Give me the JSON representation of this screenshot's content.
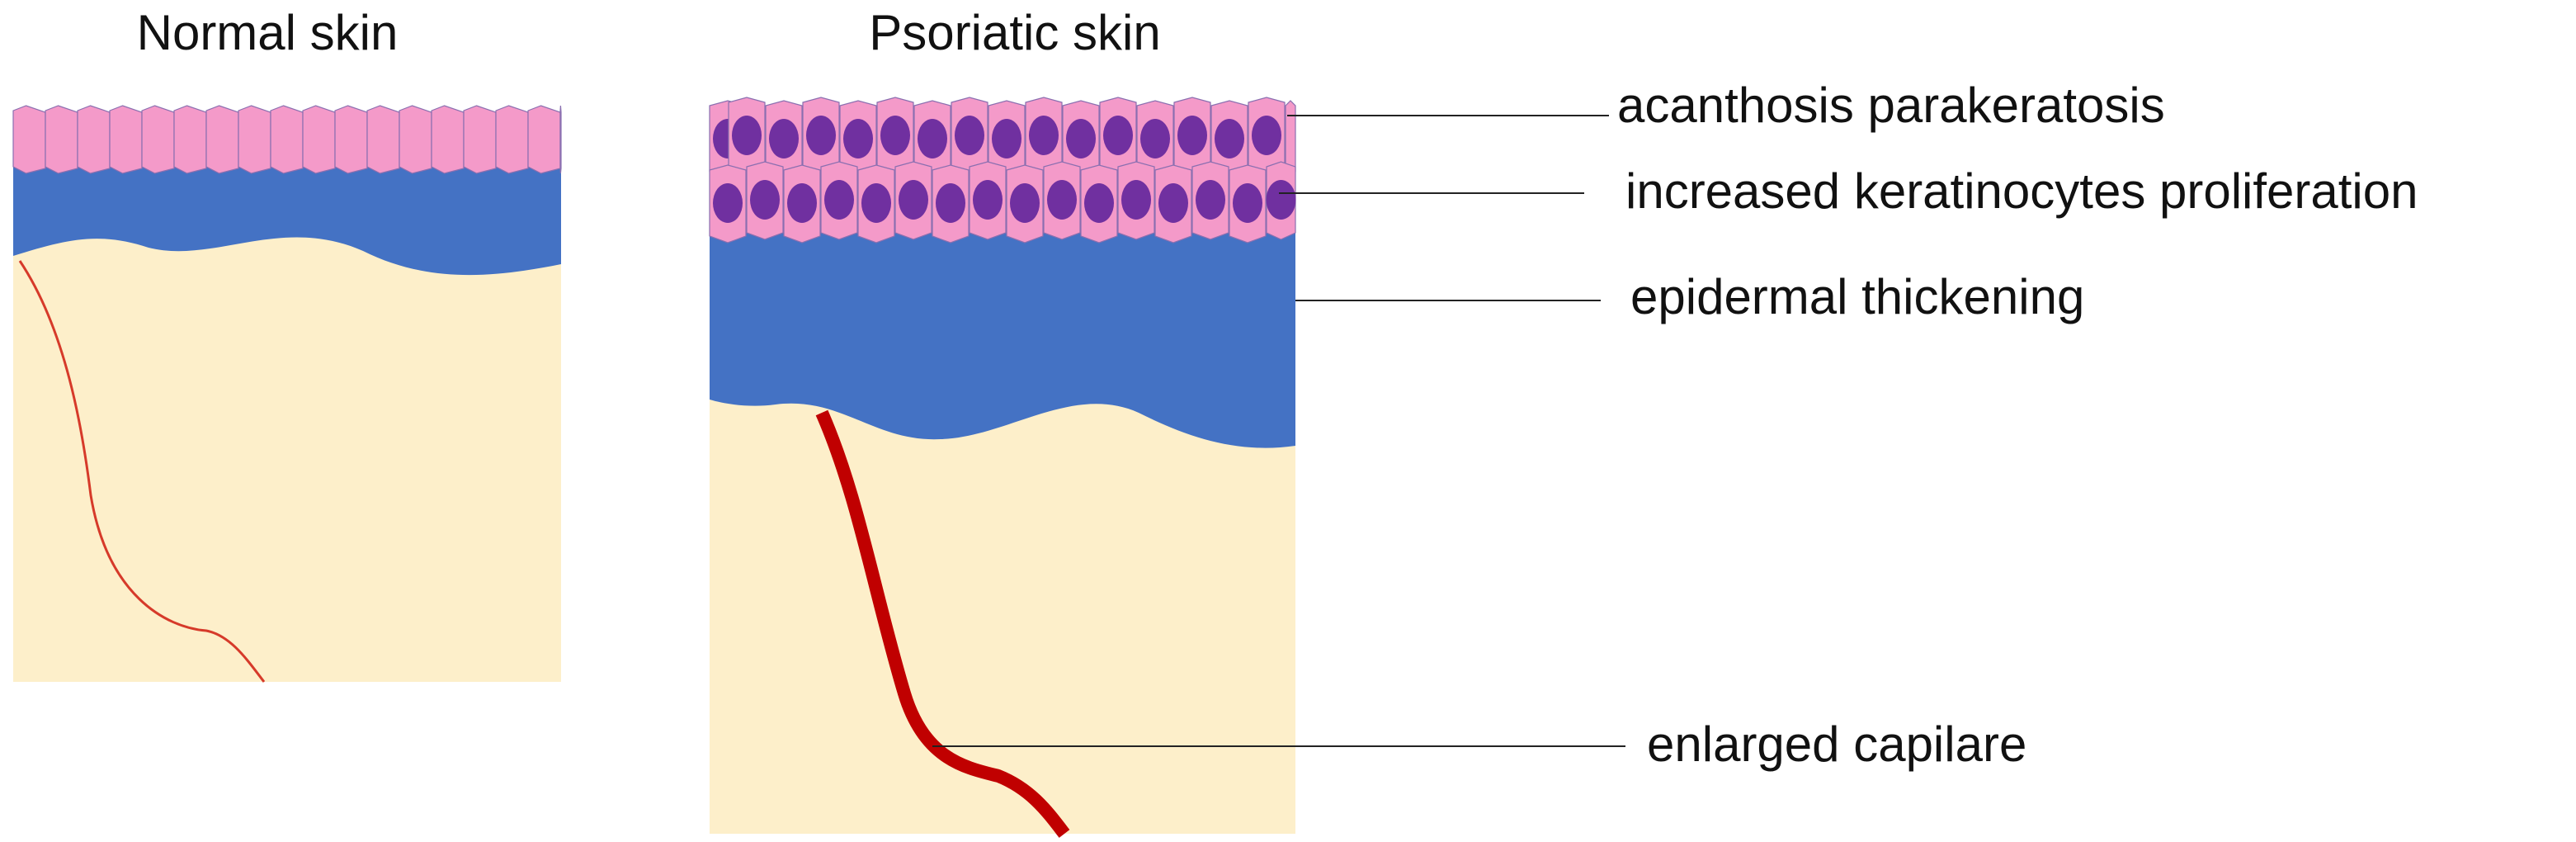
{
  "panels": [
    {
      "title": "Normal skin"
    },
    {
      "title": "Psoriatic skin"
    }
  ],
  "labels": [
    "acanthosis parakeratosis",
    "increased keratinocytes proliferation",
    "epidermal thickening",
    "enlarged capilare"
  ]
}
